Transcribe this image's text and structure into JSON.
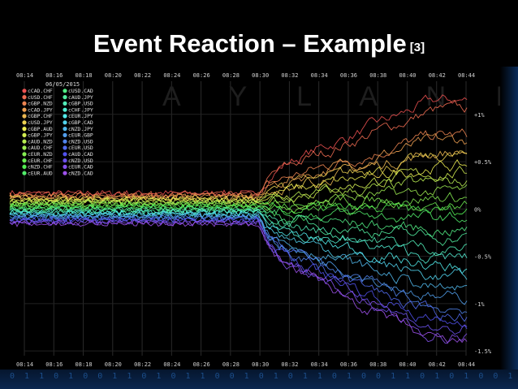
{
  "slide": {
    "title": "Event Reaction – Example",
    "reference": "[3]",
    "bottom_digits": "0 1 1 0 1 0 0 1 1 0 1 0 1 1 0 0 1 0 1 0 1 1 0 1 0 0 1 1 0 1 0 1 0 0 1 1 0 1 0"
  },
  "chart_data": {
    "type": "line",
    "date": "06/05/2015",
    "watermark": "A Y L A N E",
    "x_ticks": [
      "08:14",
      "08:16",
      "08:18",
      "08:20",
      "08:22",
      "08:24",
      "08:26",
      "08:28",
      "08:30",
      "08:32",
      "08:34",
      "08:36",
      "08:38",
      "08:40",
      "08:42",
      "08:44"
    ],
    "y_ticks": [
      "+1%",
      "+0.5%",
      "0%",
      "-0.5%",
      "-1%",
      "-1.5%"
    ],
    "y_tick_values": [
      1,
      0.5,
      0,
      -0.5,
      -1,
      -1.5
    ],
    "ylim": [
      -1.55,
      1.35
    ],
    "event_time": "08:30",
    "series": [
      {
        "name": "cCAD.CHF",
        "final": 1.15
      },
      {
        "name": "cUSD.CHF",
        "final": 1.05
      },
      {
        "name": "cGBP.NZD",
        "final": 0.78
      },
      {
        "name": "cCAD.JPY",
        "final": 0.72
      },
      {
        "name": "cGBP.CHF",
        "final": 0.6
      },
      {
        "name": "cUSD.JPY",
        "final": 0.55
      },
      {
        "name": "cGBP.AUD",
        "final": 0.45
      },
      {
        "name": "cGBP.JPY",
        "final": 0.38
      },
      {
        "name": "cAUD.NZD",
        "final": 0.28
      },
      {
        "name": "cAUD.CHF",
        "final": 0.18
      },
      {
        "name": "cEUR.NZD",
        "final": 0.12
      },
      {
        "name": "cEUR.CHF",
        "final": 0.05
      },
      {
        "name": "cNZD.CHF",
        "final": -0.02
      },
      {
        "name": "cEUR.AUD",
        "final": -0.1
      },
      {
        "name": "cUSD.CAD",
        "final": -0.22
      },
      {
        "name": "cAUD.JPY",
        "final": -0.3
      },
      {
        "name": "cGBP.USD",
        "final": -0.42
      },
      {
        "name": "cCHF.JPY",
        "final": -0.52
      },
      {
        "name": "cEUR.JPY",
        "final": -0.62
      },
      {
        "name": "cGBP.CAD",
        "final": -0.72
      },
      {
        "name": "cNZD.JPY",
        "final": -0.85
      },
      {
        "name": "cEUR.GBP",
        "final": -0.95
      },
      {
        "name": "cNZD.USD",
        "final": -1.05
      },
      {
        "name": "cEUR.USD",
        "final": -1.12
      },
      {
        "name": "cAUD.CAD",
        "final": -1.2
      },
      {
        "name": "cNZD.USD",
        "final": -1.28
      },
      {
        "name": "cEUR.CAD",
        "final": -1.35
      },
      {
        "name": "cNZD.CAD",
        "final": -1.42
      }
    ],
    "grid": true,
    "legend_position": "top-left"
  }
}
